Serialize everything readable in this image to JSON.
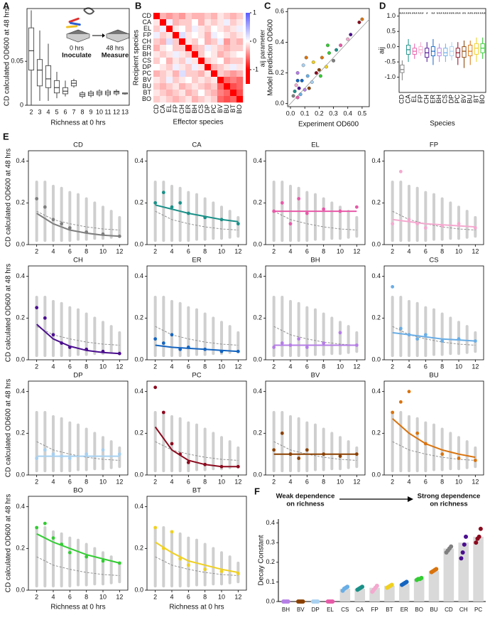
{
  "chart_data": [
    {
      "type": "box",
      "panel_label": "A",
      "y_label": "CD calculated OD600 at 48 hrs",
      "x_label": "Richness at 0 hrs",
      "categories": [
        2,
        3,
        4,
        5,
        6,
        7,
        8,
        9,
        10,
        11,
        12,
        13
      ],
      "min": [
        0.0,
        0.005,
        0.005,
        0.008,
        0.01,
        0.02,
        0.008,
        0.009,
        0.01,
        0.01,
        0.011,
        0.012
      ],
      "q1": [
        0.04,
        0.022,
        0.02,
        0.014,
        0.013,
        0.022,
        0.01,
        0.011,
        0.012,
        0.012,
        0.013,
        0.013
      ],
      "median": [
        0.062,
        0.04,
        0.03,
        0.02,
        0.016,
        0.025,
        0.012,
        0.013,
        0.014,
        0.014,
        0.015,
        0.013
      ],
      "q3": [
        0.088,
        0.052,
        0.045,
        0.028,
        0.02,
        0.028,
        0.014,
        0.015,
        0.016,
        0.016,
        0.016,
        0.014
      ],
      "max": [
        0.108,
        0.085,
        0.07,
        0.038,
        0.028,
        0.03,
        0.016,
        0.017,
        0.018,
        0.018,
        0.018,
        0.014
      ],
      "color": "#444444",
      "ylim": [
        0,
        0.11
      ],
      "yticks": [
        0,
        0.05
      ],
      "inset_labels": [
        "0 hrs",
        "Inoculate",
        "48 hrs",
        "Measure"
      ]
    },
    {
      "type": "heatmap",
      "panel_label": "B",
      "x_label": "Effector species",
      "y_label": "Recipient species",
      "categories": [
        "CD",
        "CA",
        "EL",
        "FP",
        "CH",
        "ER",
        "BH",
        "CS",
        "DP",
        "PC",
        "BV",
        "BU",
        "BT",
        "BO"
      ],
      "values": [
        [
          -1,
          -0.3,
          -0.4,
          -0.3,
          -0.4,
          -0.2,
          -0.3,
          -0.3,
          -0.2,
          -0.3,
          -0.1,
          -0.2,
          -0.3,
          -0.2
        ],
        [
          -0.1,
          -1,
          0.1,
          -0.3,
          -0.2,
          -0.2,
          0.0,
          -0.3,
          -0.1,
          -0.2,
          -0.1,
          0.1,
          -0.2,
          -0.1
        ],
        [
          -0.2,
          0.1,
          -1,
          -0.1,
          0.0,
          -0.2,
          0.1,
          -0.1,
          -0.2,
          0.0,
          -0.1,
          -0.2,
          -0.1,
          0.1
        ],
        [
          0.1,
          -0.2,
          -0.1,
          -1,
          0.2,
          -0.1,
          0.0,
          -0.1,
          -0.3,
          0.1,
          0.0,
          -0.1,
          -0.2,
          -0.1
        ],
        [
          -0.2,
          -0.3,
          0.2,
          -0.2,
          -1,
          -0.1,
          -0.2,
          0.0,
          -0.3,
          -0.2,
          0.1,
          -0.4,
          -0.2,
          -0.3
        ],
        [
          -0.3,
          -0.1,
          0.0,
          -0.2,
          -0.2,
          -1,
          -0.3,
          -0.2,
          0.1,
          -0.1,
          -0.2,
          -0.3,
          -0.2,
          -0.2
        ],
        [
          -0.1,
          -0.2,
          -0.1,
          0.1,
          -0.1,
          -0.2,
          -1,
          -0.2,
          0.0,
          -0.1,
          -0.3,
          -0.2,
          -0.1,
          0.0
        ],
        [
          -0.2,
          0.0,
          -0.3,
          -0.1,
          -0.2,
          0.1,
          -0.1,
          -1,
          -0.2,
          -0.1,
          0.0,
          -0.3,
          -0.2,
          -0.2
        ],
        [
          0.0,
          -0.1,
          -0.2,
          0.1,
          -0.1,
          -0.2,
          0.1,
          -0.1,
          -1,
          -0.3,
          -0.2,
          -0.1,
          0.1,
          -0.1
        ],
        [
          -0.3,
          -0.2,
          -0.1,
          -0.3,
          0.2,
          -0.2,
          -0.2,
          -0.3,
          -0.1,
          -1,
          -0.2,
          -0.3,
          -0.4,
          -0.3
        ],
        [
          -0.1,
          -0.2,
          0.1,
          -0.2,
          -0.1,
          0.0,
          -0.2,
          -0.1,
          -0.2,
          -0.1,
          -1,
          -0.6,
          -0.5,
          -0.6
        ],
        [
          -0.2,
          -0.3,
          -0.2,
          -0.1,
          -0.3,
          -0.2,
          -0.1,
          -0.2,
          -0.3,
          -0.2,
          -0.6,
          -1,
          -0.7,
          -0.6
        ],
        [
          -0.1,
          -0.2,
          -0.3,
          -0.2,
          -0.1,
          -0.3,
          -0.2,
          0.0,
          -0.2,
          -0.3,
          -0.5,
          -0.6,
          -1,
          -0.7
        ],
        [
          -0.2,
          -0.1,
          -0.2,
          -0.3,
          -0.2,
          -0.1,
          -0.3,
          -0.2,
          -0.1,
          -0.2,
          -0.6,
          -0.7,
          -0.6,
          -1
        ]
      ],
      "zlim": [
        -1.5,
        1
      ],
      "zticks": [
        1,
        0,
        -1
      ],
      "colorbar_label": "aij parameter"
    },
    {
      "type": "scatter",
      "panel_label": "C",
      "x_label": "Experiment OD600",
      "y_label": "Model prediction OD600",
      "x": [
        0.02,
        0.03,
        0.05,
        0.04,
        0.06,
        0.08,
        0.1,
        0.12,
        0.15,
        0.18,
        0.2,
        0.22,
        0.25,
        0.27,
        0.3,
        0.32,
        0.35,
        0.4,
        0.42,
        0.48,
        0.5,
        0.05,
        0.07,
        0.09,
        0.13,
        0.16,
        0.21,
        0.26,
        0.05,
        0.11
      ],
      "values": [
        0.05,
        0.08,
        0.04,
        0.12,
        0.1,
        0.15,
        0.09,
        0.18,
        0.14,
        0.2,
        0.22,
        0.3,
        0.24,
        0.33,
        0.28,
        0.35,
        0.38,
        0.42,
        0.45,
        0.53,
        0.55,
        0.2,
        0.06,
        0.25,
        0.1,
        0.27,
        0.18,
        0.38,
        0.15,
        0.3
      ],
      "colors": [
        "#7f7f7f",
        "#1a9088",
        "#e75aa8",
        "#f4a9cf",
        "#4b0e8f",
        "#1565c0",
        "#b57ee6",
        "#6aaee6",
        "#a8d0f0",
        "#8b0a1e",
        "#8b4000",
        "#d9730d",
        "#f0d020",
        "#33cc33",
        "#7f7f7f",
        "#1a9088",
        "#e75aa8",
        "#f4a9cf",
        "#4b0e8f",
        "#8b0a1e",
        "#d9730d",
        "#b57ee6",
        "#6aaee6",
        "#a8d0f0",
        "#8b4000",
        "#f0d020",
        "#33cc33",
        "#33cc33",
        "#1565c0",
        "#d9730d"
      ],
      "xlim": [
        -0.02,
        0.55
      ],
      "ylim": [
        -0.02,
        0.62
      ],
      "xticks": [
        {
          "value": 0,
          "label": "0.0"
        },
        {
          "value": 0.1,
          "label": "0.1"
        },
        {
          "value": 0.2,
          "label": "0.2"
        },
        {
          "value": 0.3,
          "label": "0.3"
        },
        {
          "value": 0.4,
          "label": "0.4"
        },
        {
          "value": 0.5,
          "label": "0.5"
        }
      ],
      "yticks": [
        {
          "value": 0,
          "label": "0.0"
        },
        {
          "value": 0.2,
          "label": "0.2"
        },
        {
          "value": 0.4,
          "label": "0.4"
        },
        {
          "value": 0.6,
          "label": "0.6"
        }
      ]
    },
    {
      "type": "box",
      "panel_label": "D",
      "y_label": "aij",
      "x_label": "Species",
      "categories": [
        "CD",
        "CA",
        "EL",
        "FP",
        "CH",
        "ER",
        "BH",
        "CS",
        "DP",
        "PC",
        "BV",
        "BU",
        "BT",
        "BO"
      ],
      "colors": [
        "#7f7f7f",
        "#1a9088",
        "#e75aa8",
        "#f4a9cf",
        "#4b0e8f",
        "#1565c0",
        "#b57ee6",
        "#6aaee6",
        "#a8d0f0",
        "#8b0a1e",
        "#8b4000",
        "#d9730d",
        "#f0d020",
        "#33cc33"
      ],
      "min": [
        -1.1,
        -0.5,
        -0.4,
        -0.3,
        -0.5,
        -0.6,
        -0.5,
        -0.5,
        -0.45,
        -0.6,
        -0.7,
        -0.6,
        -0.5,
        -0.4
      ],
      "q1": [
        -0.85,
        -0.25,
        -0.25,
        -0.2,
        -0.35,
        -0.3,
        -0.3,
        -0.3,
        -0.3,
        -0.35,
        -0.35,
        -0.3,
        -0.25,
        -0.2
      ],
      "median": [
        -0.75,
        -0.1,
        -0.15,
        -0.1,
        -0.2,
        -0.15,
        -0.2,
        -0.2,
        -0.15,
        -0.2,
        -0.15,
        -0.15,
        -0.05,
        -0.05
      ],
      "q3": [
        -0.6,
        0.05,
        -0.05,
        0.0,
        -0.05,
        0.0,
        -0.05,
        -0.05,
        0.0,
        -0.05,
        0.0,
        0.05,
        0.1,
        0.1
      ],
      "max": [
        -0.45,
        0.25,
        0.1,
        0.15,
        0.15,
        0.25,
        0.1,
        0.1,
        0.15,
        0.15,
        0.2,
        0.2,
        0.3,
        0.3
      ],
      "ylim": [
        -1.5,
        1.25
      ],
      "yticks": [
        {
          "value": -1,
          "label": "-1.0"
        },
        {
          "value": -0.5,
          "label": "-0.5"
        },
        {
          "value": 0,
          "label": "0.0"
        },
        {
          "value": 0.5,
          "label": "0.5"
        },
        {
          "value": 1,
          "label": "1.0"
        }
      ],
      "annotations": [
        "***",
        "***",
        "***",
        "***",
        "*",
        "**",
        "***",
        "***",
        "***",
        "***",
        "**",
        "***",
        "***",
        "***"
      ]
    },
    {
      "type": "line",
      "panel_label": "E",
      "y_label": "CD calculated OD600 at 48 hrs",
      "x_label": "Richness at 0 hrs",
      "x": [
        2,
        4,
        6,
        8,
        10,
        12
      ],
      "reference": [
        0.16,
        0.12,
        0.1,
        0.085,
        0.075,
        0.07
      ],
      "background_x": [
        2,
        3,
        4,
        5,
        6,
        7,
        8,
        9,
        10,
        11,
        12
      ],
      "background_min": [
        0.02,
        0.02,
        0.02,
        0.02,
        0.02,
        0.025,
        0.025,
        0.03,
        0.03,
        0.035,
        0.04
      ],
      "background_max": [
        0.3,
        0.3,
        0.28,
        0.27,
        0.25,
        0.24,
        0.22,
        0.2,
        0.18,
        0.16,
        0.13
      ],
      "points_x": [
        2,
        3,
        4,
        5,
        6,
        8,
        10,
        12
      ],
      "xlim": [
        1,
        13
      ],
      "ylim": [
        0,
        0.45
      ],
      "xticks": [
        2,
        4,
        6,
        8,
        10,
        12
      ],
      "yticks": [
        {
          "value": 0,
          "label": "0.0"
        },
        {
          "value": 0.2,
          "label": "0.2"
        },
        {
          "value": 0.4,
          "label": "0.4"
        }
      ],
      "panels": [
        {
          "title": "CD",
          "color": "#7f7f7f",
          "values": [
            0.15,
            0.1,
            0.07,
            0.055,
            0.045,
            0.04
          ],
          "points": [
            0.22,
            0.18,
            0.12,
            0.1,
            0.08,
            0.06,
            0.05,
            0.04
          ]
        },
        {
          "title": "CA",
          "color": "#1a9088",
          "values": [
            0.19,
            0.17,
            0.15,
            0.135,
            0.12,
            0.11
          ],
          "points": [
            0.2,
            0.25,
            0.18,
            0.2,
            0.15,
            0.13,
            0.12,
            0.1
          ]
        },
        {
          "title": "EL",
          "color": "#e75aa8",
          "values": [
            0.16,
            0.16,
            0.16,
            0.16,
            0.16,
            0.16
          ],
          "points": [
            0.16,
            0.2,
            0.1,
            0.22,
            0.15,
            0.17,
            0.16,
            0.18
          ]
        },
        {
          "title": "FP",
          "color": "#f4a9cf",
          "values": [
            0.12,
            0.11,
            0.1,
            0.095,
            0.09,
            0.085
          ],
          "points": [
            0.1,
            0.35,
            0.12,
            0.1,
            0.08,
            0.09,
            0.1,
            0.08
          ]
        },
        {
          "title": "CH",
          "color": "#4b0e8f",
          "values": [
            0.17,
            0.1,
            0.065,
            0.045,
            0.035,
            0.03
          ],
          "points": [
            0.25,
            0.2,
            0.12,
            0.08,
            0.06,
            0.05,
            0.04,
            0.03
          ]
        },
        {
          "title": "ER",
          "color": "#1565c0",
          "values": [
            0.07,
            0.06,
            0.055,
            0.05,
            0.045,
            0.04
          ],
          "points": [
            0.1,
            0.08,
            0.12,
            0.05,
            0.06,
            0.05,
            0.04,
            0.04
          ]
        },
        {
          "title": "BH",
          "color": "#b57ee6",
          "values": [
            0.07,
            0.07,
            0.07,
            0.07,
            0.07,
            0.07
          ],
          "points": [
            0.06,
            0.08,
            0.07,
            0.1,
            0.06,
            0.08,
            0.13,
            0.07
          ]
        },
        {
          "title": "CS",
          "color": "#6aaee6",
          "values": [
            0.13,
            0.12,
            0.11,
            0.1,
            0.095,
            0.09
          ],
          "points": [
            0.35,
            0.15,
            0.12,
            0.1,
            0.12,
            0.09,
            0.1,
            0.09
          ]
        },
        {
          "title": "DP",
          "color": "#a8d0f0",
          "values": [
            0.09,
            0.09,
            0.09,
            0.09,
            0.09,
            0.09
          ],
          "points": [
            0.08,
            0.12,
            0.1,
            0.09,
            0.08,
            0.1,
            0.12,
            0.1
          ]
        },
        {
          "title": "PC",
          "color": "#8b0a1e",
          "values": [
            0.23,
            0.12,
            0.07,
            0.05,
            0.04,
            0.04
          ],
          "points": [
            0.42,
            0.3,
            0.15,
            0.1,
            0.06,
            0.05,
            0.04,
            0.04
          ]
        },
        {
          "title": "BV",
          "color": "#8b4000",
          "values": [
            0.1,
            0.1,
            0.1,
            0.1,
            0.1,
            0.1
          ],
          "points": [
            0.12,
            0.2,
            0.1,
            0.08,
            0.12,
            0.1,
            0.09,
            0.1
          ]
        },
        {
          "title": "BU",
          "color": "#d9730d",
          "values": [
            0.27,
            0.2,
            0.15,
            0.12,
            0.1,
            0.085
          ],
          "points": [
            0.3,
            0.35,
            0.4,
            0.2,
            0.15,
            0.1,
            0.08,
            0.07
          ]
        },
        {
          "title": "BO",
          "color": "#33cc33",
          "values": [
            0.27,
            0.23,
            0.2,
            0.17,
            0.15,
            0.13
          ],
          "points": [
            0.3,
            0.32,
            0.25,
            0.22,
            0.18,
            0.16,
            0.14,
            0.13
          ]
        },
        {
          "title": "BT",
          "color": "#f0d020",
          "values": [
            0.23,
            0.18,
            0.14,
            0.12,
            0.1,
            0.085
          ],
          "points": [
            0.3,
            0.2,
            0.28,
            0.15,
            0.12,
            0.1,
            0.09,
            0.08
          ]
        }
      ]
    },
    {
      "type": "bar",
      "panel_label": "F",
      "y_label": "Decay Constant",
      "categories": [
        "BH",
        "BV",
        "DP",
        "EL",
        "CS",
        "CA",
        "FP",
        "BT",
        "ER",
        "BO",
        "BU",
        "CD",
        "CH",
        "PC"
      ],
      "values": [
        0,
        0,
        0,
        0,
        0.065,
        0.065,
        0.07,
        0.08,
        0.09,
        0.115,
        0.155,
        0.27,
        0.3,
        0.33
      ],
      "colors": [
        "#b57ee6",
        "#8b4000",
        "#a8d0f0",
        "#e75aa8",
        "#6aaee6",
        "#1a9088",
        "#f4a9cf",
        "#f0d020",
        "#1565c0",
        "#33cc33",
        "#d9730d",
        "#7f7f7f",
        "#4b0e8f",
        "#8b0a1e"
      ],
      "points": [
        [
          0,
          0,
          0,
          0
        ],
        [
          0,
          0,
          0,
          0
        ],
        [
          0,
          0,
          0,
          0
        ],
        [
          0,
          0,
          0,
          0
        ],
        [
          0.055,
          0.065,
          0.07,
          0.075
        ],
        [
          0.06,
          0.065,
          0.07,
          0.075
        ],
        [
          0.05,
          0.06,
          0.07,
          0.08
        ],
        [
          0.07,
          0.075,
          0.08,
          0.085
        ],
        [
          0.085,
          0.09,
          0.095,
          0.1
        ],
        [
          0.11,
          0.115,
          0.115,
          0.12
        ],
        [
          0.15,
          0.155,
          0.16,
          0.165
        ],
        [
          0.25,
          0.26,
          0.27,
          0.28
        ],
        [
          0.22,
          0.25,
          0.29,
          0.33
        ],
        [
          0.3,
          0.32,
          0.33,
          0.37
        ]
      ],
      "bar_color": "#d9d9d9",
      "ylim": [
        0,
        0.42
      ],
      "yticks": [
        {
          "value": 0,
          "label": "0.0"
        },
        {
          "value": 0.1,
          "label": "0.1"
        },
        {
          "value": 0.2,
          "label": "0.2"
        },
        {
          "value": 0.3,
          "label": "0.3"
        },
        {
          "value": 0.4,
          "label": "0.4"
        }
      ],
      "annotations": [
        "Weak dependence",
        "on richness",
        "Strong dependence",
        "on richness"
      ]
    }
  ]
}
